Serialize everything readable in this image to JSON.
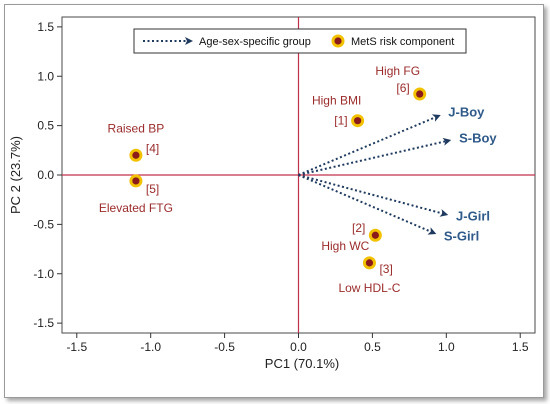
{
  "chart_data": {
    "type": "scatter",
    "title": "",
    "xlabel": "PC1 (70.1%)",
    "ylabel": "PC 2 (23.7%)",
    "xlim": [
      -1.6,
      1.6
    ],
    "ylim": [
      -1.6,
      1.6
    ],
    "xticks": [
      -1.5,
      -1.0,
      -0.5,
      0.0,
      0.5,
      1.0,
      1.5
    ],
    "yticks": [
      1.5,
      1.0,
      0.5,
      0.0,
      -0.5,
      -1.0,
      -1.5
    ],
    "xtick_labels": [
      "-1.5",
      "-1.0",
      "-0.5",
      "0.0",
      "0.5",
      "1.0",
      "1.5"
    ],
    "ytick_labels": [
      "1.5",
      "1.0",
      "0.5",
      "0.0",
      "-0.5",
      "-1.0",
      "-1.5"
    ],
    "grid": false,
    "legend_position": "top-center",
    "legend": {
      "arrow_label": "Age-sex-specific group",
      "point_label": "MetS risk component"
    },
    "colors": {
      "arrow": "#1f3a5f",
      "group_label": "#2f5a8a",
      "point_fill": "#8b1a1a",
      "point_ring": "#f2c200",
      "component_label": "#9b2b2b",
      "zero_line": "#c0304a"
    },
    "vectors": [
      {
        "label": "J-Boy",
        "x": 0.95,
        "y": 0.6
      },
      {
        "label": "S-Boy",
        "x": 1.02,
        "y": 0.35
      },
      {
        "label": "J-Girl",
        "x": 1.0,
        "y": -0.4
      },
      {
        "label": "S-Girl",
        "x": 0.92,
        "y": -0.59
      }
    ],
    "points": [
      {
        "x": -1.1,
        "y": 0.2,
        "number": "[4]",
        "name": "Raised BP"
      },
      {
        "x": -1.1,
        "y": -0.06,
        "number": "[5]",
        "name": "Elevated FTG"
      },
      {
        "x": 0.4,
        "y": 0.55,
        "number": "[1]",
        "name": "High BMI"
      },
      {
        "x": 0.82,
        "y": 0.82,
        "number": "[6]",
        "name": "High FG"
      },
      {
        "x": 0.52,
        "y": -0.61,
        "number": "[2]",
        "name": "High WC"
      },
      {
        "x": 0.48,
        "y": -0.89,
        "number": "[3]",
        "name": "Low HDL-C"
      }
    ]
  }
}
